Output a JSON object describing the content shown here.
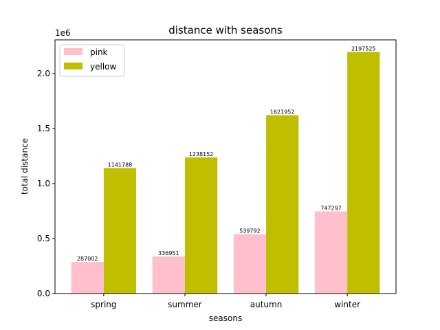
{
  "chart_data": {
    "type": "bar",
    "title": "distance with seasons",
    "xlabel": "seasons",
    "ylabel": "total distance",
    "y_offset_label": "1e6",
    "categories": [
      "spring",
      "summer",
      "autumn",
      "winter"
    ],
    "series": [
      {
        "name": "pink",
        "color": "#ffc0cb",
        "values": [
          287002,
          336951,
          539792,
          747297
        ]
      },
      {
        "name": "yellow",
        "color": "#bfbf00",
        "values": [
          1141788,
          1238152,
          1621952,
          2197525
        ]
      }
    ],
    "ylim": [
      0,
      2307401
    ],
    "yticks": [
      0,
      500000,
      1000000,
      1500000,
      2000000
    ],
    "ytick_labels": [
      "0.0",
      "0.5",
      "1.0",
      "1.5",
      "2.0"
    ],
    "legend_position": "top-left",
    "grid": false
  }
}
